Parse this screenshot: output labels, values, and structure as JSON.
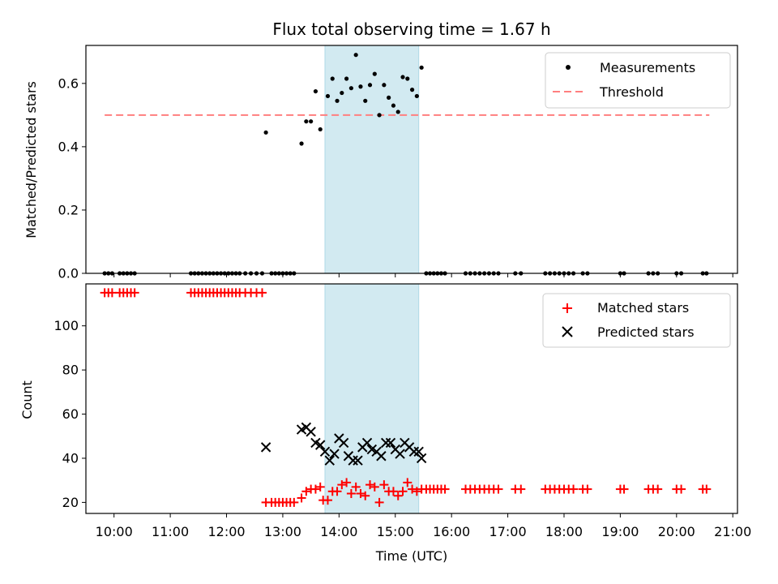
{
  "chart_data": [
    {
      "type": "scatter",
      "title": "Flux total observing time = 1.67 h",
      "xlabel": "",
      "ylabel": "Matched/Predicted stars",
      "ylim": [
        0,
        0.72
      ],
      "yticks": [
        "0.0",
        "0.2",
        "0.4",
        "0.6"
      ],
      "xlim": [
        "09:30",
        "21:05"
      ],
      "highlight_span": {
        "start": "13:45",
        "end": "15:25",
        "color": "#add8e6"
      },
      "legend": {
        "placement": "top-right",
        "entries": [
          "Measurements",
          "Threshold"
        ]
      },
      "threshold": {
        "name": "Threshold",
        "y": 0.5,
        "x_start": "09:50",
        "x_end": "20:35",
        "color": "#ff7f7f",
        "style": "dashed"
      },
      "series": [
        {
          "name": "Measurements",
          "color": "#000000",
          "marker": "dot",
          "points": [
            [
              "09:50",
              0
            ],
            [
              "09:54",
              0
            ],
            [
              "09:58",
              0
            ],
            [
              "10:06",
              0
            ],
            [
              "10:10",
              0
            ],
            [
              "10:14",
              0
            ],
            [
              "10:18",
              0
            ],
            [
              "10:22",
              0
            ],
            [
              "11:22",
              0
            ],
            [
              "11:26",
              0
            ],
            [
              "11:30",
              0
            ],
            [
              "11:34",
              0
            ],
            [
              "11:38",
              0
            ],
            [
              "11:42",
              0
            ],
            [
              "11:46",
              0
            ],
            [
              "11:50",
              0
            ],
            [
              "11:54",
              0
            ],
            [
              "11:58",
              0
            ],
            [
              "12:02",
              0
            ],
            [
              "12:06",
              0
            ],
            [
              "12:10",
              0
            ],
            [
              "12:14",
              0
            ],
            [
              "12:20",
              0
            ],
            [
              "12:26",
              0
            ],
            [
              "12:32",
              0
            ],
            [
              "12:38",
              0
            ],
            [
              "12:42",
              0.445
            ],
            [
              "12:48",
              0
            ],
            [
              "12:52",
              0
            ],
            [
              "12:56",
              0
            ],
            [
              "13:00",
              0
            ],
            [
              "13:04",
              0
            ],
            [
              "13:08",
              0
            ],
            [
              "13:12",
              0
            ],
            [
              "13:20",
              0.41
            ],
            [
              "13:25",
              0.48
            ],
            [
              "13:30",
              0.48
            ],
            [
              "13:35",
              0.575
            ],
            [
              "13:40",
              0.455
            ],
            [
              "13:48",
              0.56
            ],
            [
              "13:53",
              0.615
            ],
            [
              "13:58",
              0.545
            ],
            [
              "14:03",
              0.57
            ],
            [
              "14:08",
              0.615
            ],
            [
              "14:13",
              0.585
            ],
            [
              "14:18",
              0.69
            ],
            [
              "14:23",
              0.59
            ],
            [
              "14:28",
              0.545
            ],
            [
              "14:33",
              0.595
            ],
            [
              "14:38",
              0.63
            ],
            [
              "14:43",
              0.5
            ],
            [
              "14:48",
              0.595
            ],
            [
              "14:53",
              0.555
            ],
            [
              "14:58",
              0.53
            ],
            [
              "15:03",
              0.51
            ],
            [
              "15:08",
              0.62
            ],
            [
              "15:13",
              0.615
            ],
            [
              "15:18",
              0.58
            ],
            [
              "15:23",
              0.56
            ],
            [
              "15:28",
              0.65
            ],
            [
              "15:33",
              0
            ],
            [
              "15:37",
              0
            ],
            [
              "15:41",
              0
            ],
            [
              "15:45",
              0
            ],
            [
              "15:49",
              0
            ],
            [
              "15:53",
              0
            ],
            [
              "16:15",
              0
            ],
            [
              "16:20",
              0
            ],
            [
              "16:25",
              0
            ],
            [
              "16:30",
              0
            ],
            [
              "16:35",
              0
            ],
            [
              "16:40",
              0
            ],
            [
              "16:45",
              0
            ],
            [
              "16:50",
              0
            ],
            [
              "17:08",
              0
            ],
            [
              "17:14",
              0
            ],
            [
              "17:40",
              0
            ],
            [
              "17:45",
              0
            ],
            [
              "17:50",
              0
            ],
            [
              "17:55",
              0
            ],
            [
              "18:00",
              0
            ],
            [
              "18:05",
              0
            ],
            [
              "18:10",
              0
            ],
            [
              "18:20",
              0
            ],
            [
              "18:25",
              0
            ],
            [
              "19:00",
              0
            ],
            [
              "19:04",
              0
            ],
            [
              "19:30",
              0
            ],
            [
              "19:35",
              0
            ],
            [
              "19:40",
              0
            ],
            [
              "20:00",
              0
            ],
            [
              "20:05",
              0
            ],
            [
              "20:28",
              0
            ],
            [
              "20:32",
              0
            ]
          ]
        }
      ]
    },
    {
      "type": "scatter",
      "title": "",
      "xlabel": "Time (UTC)",
      "ylabel": "Count",
      "ylim": [
        15,
        119
      ],
      "yticks": [
        "20",
        "40",
        "60",
        "80",
        "100"
      ],
      "xlim": [
        "09:30",
        "21:05"
      ],
      "xticks": [
        "10:00",
        "11:00",
        "12:00",
        "13:00",
        "14:00",
        "15:00",
        "16:00",
        "17:00",
        "18:00",
        "19:00",
        "20:00",
        "21:00"
      ],
      "highlight_span": {
        "start": "13:45",
        "end": "15:25",
        "color": "#add8e6"
      },
      "legend": {
        "placement": "top-right",
        "entries": [
          "Matched stars",
          "Predicted stars"
        ]
      },
      "series": [
        {
          "name": "Matched stars",
          "color": "#ff0000",
          "marker": "plus",
          "points": [
            [
              "09:50",
              115
            ],
            [
              "09:54",
              115
            ],
            [
              "09:58",
              115
            ],
            [
              "10:06",
              115
            ],
            [
              "10:10",
              115
            ],
            [
              "10:14",
              115
            ],
            [
              "10:18",
              115
            ],
            [
              "10:22",
              115
            ],
            [
              "11:22",
              115
            ],
            [
              "11:26",
              115
            ],
            [
              "11:30",
              115
            ],
            [
              "11:34",
              115
            ],
            [
              "11:38",
              115
            ],
            [
              "11:42",
              115
            ],
            [
              "11:46",
              115
            ],
            [
              "11:50",
              115
            ],
            [
              "11:54",
              115
            ],
            [
              "11:58",
              115
            ],
            [
              "12:02",
              115
            ],
            [
              "12:06",
              115
            ],
            [
              "12:10",
              115
            ],
            [
              "12:14",
              115
            ],
            [
              "12:20",
              115
            ],
            [
              "12:26",
              115
            ],
            [
              "12:32",
              115
            ],
            [
              "12:38",
              115
            ],
            [
              "12:42",
              20
            ],
            [
              "12:48",
              20
            ],
            [
              "12:52",
              20
            ],
            [
              "12:56",
              20
            ],
            [
              "13:00",
              20
            ],
            [
              "13:04",
              20
            ],
            [
              "13:08",
              20
            ],
            [
              "13:12",
              20
            ],
            [
              "13:20",
              22
            ],
            [
              "13:25",
              25
            ],
            [
              "13:30",
              26
            ],
            [
              "13:35",
              26
            ],
            [
              "13:40",
              27
            ],
            [
              "13:43",
              21
            ],
            [
              "13:48",
              21
            ],
            [
              "13:53",
              25
            ],
            [
              "13:58",
              25
            ],
            [
              "14:03",
              28
            ],
            [
              "14:08",
              29
            ],
            [
              "14:13",
              24
            ],
            [
              "14:18",
              27
            ],
            [
              "14:23",
              24
            ],
            [
              "14:28",
              23
            ],
            [
              "14:33",
              28
            ],
            [
              "14:38",
              27
            ],
            [
              "14:43",
              20
            ],
            [
              "14:48",
              28
            ],
            [
              "14:53",
              25
            ],
            [
              "14:58",
              25
            ],
            [
              "15:03",
              23
            ],
            [
              "15:08",
              25
            ],
            [
              "15:13",
              29
            ],
            [
              "15:18",
              26
            ],
            [
              "15:23",
              25
            ],
            [
              "15:28",
              26
            ],
            [
              "15:33",
              26
            ],
            [
              "15:37",
              26
            ],
            [
              "15:41",
              26
            ],
            [
              "15:45",
              26
            ],
            [
              "15:49",
              26
            ],
            [
              "15:53",
              26
            ],
            [
              "16:15",
              26
            ],
            [
              "16:20",
              26
            ],
            [
              "16:25",
              26
            ],
            [
              "16:30",
              26
            ],
            [
              "16:35",
              26
            ],
            [
              "16:40",
              26
            ],
            [
              "16:45",
              26
            ],
            [
              "16:50",
              26
            ],
            [
              "17:08",
              26
            ],
            [
              "17:14",
              26
            ],
            [
              "17:40",
              26
            ],
            [
              "17:45",
              26
            ],
            [
              "17:50",
              26
            ],
            [
              "17:55",
              26
            ],
            [
              "18:00",
              26
            ],
            [
              "18:05",
              26
            ],
            [
              "18:10",
              26
            ],
            [
              "18:20",
              26
            ],
            [
              "18:25",
              26
            ],
            [
              "19:00",
              26
            ],
            [
              "19:04",
              26
            ],
            [
              "19:30",
              26
            ],
            [
              "19:35",
              26
            ],
            [
              "19:40",
              26
            ],
            [
              "20:00",
              26
            ],
            [
              "20:05",
              26
            ],
            [
              "20:28",
              26
            ],
            [
              "20:32",
              26
            ]
          ]
        },
        {
          "name": "Predicted stars",
          "color": "#000000",
          "marker": "x",
          "points": [
            [
              "12:42",
              45
            ],
            [
              "13:20",
              53
            ],
            [
              "13:25",
              54
            ],
            [
              "13:30",
              52
            ],
            [
              "13:35",
              47
            ],
            [
              "13:40",
              46
            ],
            [
              "13:45",
              43
            ],
            [
              "13:50",
              39
            ],
            [
              "13:55",
              42
            ],
            [
              "14:00",
              49
            ],
            [
              "14:05",
              47
            ],
            [
              "14:10",
              41
            ],
            [
              "14:15",
              39
            ],
            [
              "14:20",
              39
            ],
            [
              "14:25",
              45
            ],
            [
              "14:30",
              47
            ],
            [
              "14:35",
              44
            ],
            [
              "14:40",
              43
            ],
            [
              "14:45",
              41
            ],
            [
              "14:50",
              47
            ],
            [
              "14:55",
              47
            ],
            [
              "15:00",
              44
            ],
            [
              "15:05",
              42
            ],
            [
              "15:10",
              47
            ],
            [
              "15:15",
              45
            ],
            [
              "15:20",
              43
            ],
            [
              "15:25",
              43
            ],
            [
              "15:28",
              40
            ]
          ]
        }
      ]
    }
  ]
}
